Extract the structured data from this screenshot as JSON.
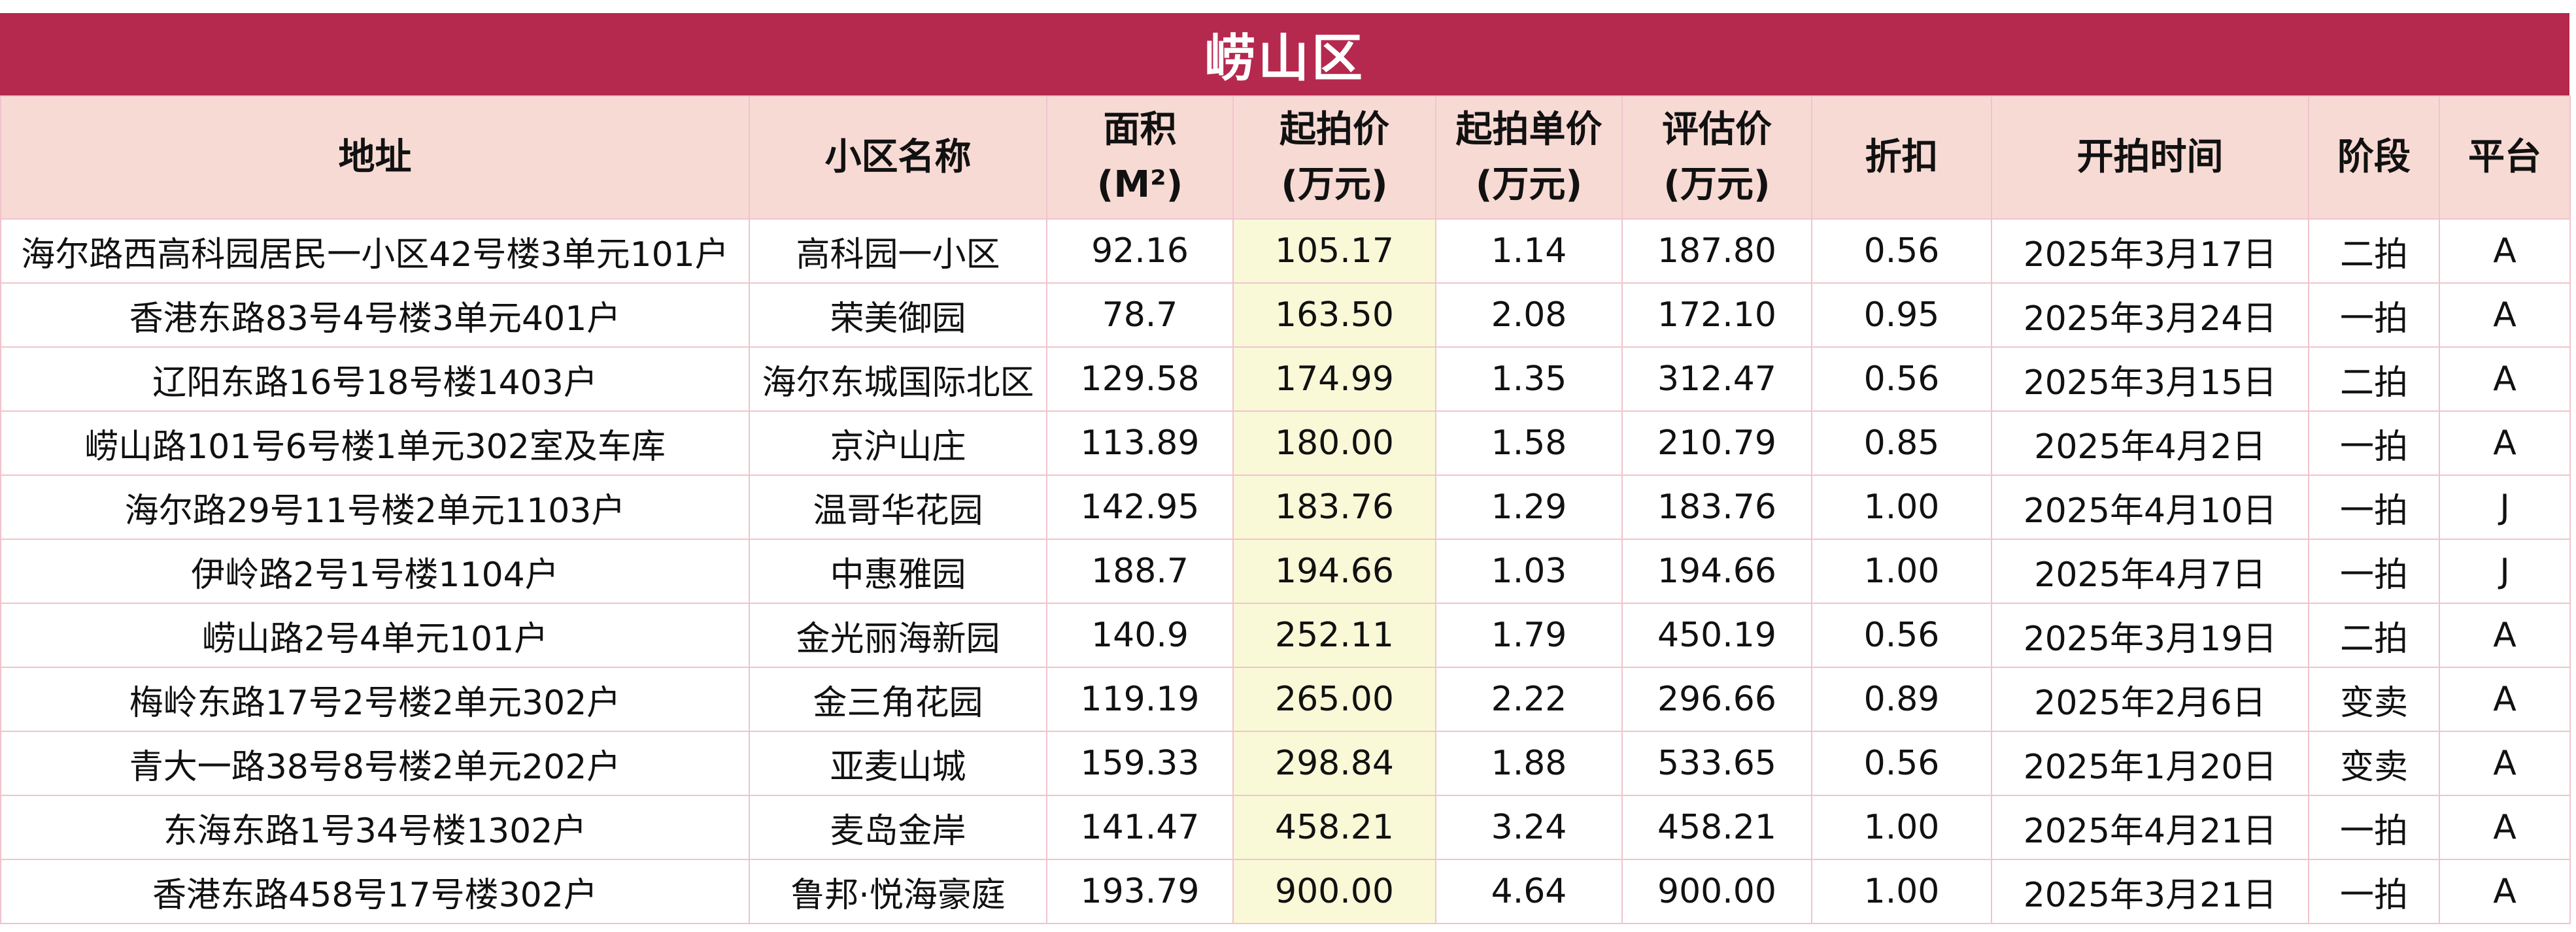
{
  "title": "崂山区",
  "headers": {
    "address": "地址",
    "community": "小区名称",
    "area_line1": "面积",
    "area_line2": "(M²)",
    "start_price_line1": "起拍价",
    "start_price_line2": "(万元)",
    "unit_price_line1": "起拍单价",
    "unit_price_line2": "(万元)",
    "appraisal_line1": "评估价",
    "appraisal_line2": "(万元)",
    "discount": "折扣",
    "start_time": "开拍时间",
    "stage": "阶段",
    "platform": "平台"
  },
  "rows": [
    {
      "address": "海尔路西高科园居民一小区42号楼3单元101户",
      "community": "高科园一小区",
      "area": "92.16",
      "start_price": "105.17",
      "unit_price": "1.14",
      "appraisal": "187.80",
      "discount": "0.56",
      "start_time": "2025年3月17日",
      "stage": "二拍",
      "platform": "A"
    },
    {
      "address": "香港东路83号4号楼3单元401户",
      "community": "荣美御园",
      "area": "78.7",
      "start_price": "163.50",
      "unit_price": "2.08",
      "appraisal": "172.10",
      "discount": "0.95",
      "start_time": "2025年3月24日",
      "stage": "一拍",
      "platform": "A"
    },
    {
      "address": "辽阳东路16号18号楼1403户",
      "community": "海尔东城国际北区",
      "area": "129.58",
      "start_price": "174.99",
      "unit_price": "1.35",
      "appraisal": "312.47",
      "discount": "0.56",
      "start_time": "2025年3月15日",
      "stage": "二拍",
      "platform": "A"
    },
    {
      "address": "崂山路101号6号楼1单元302室及车库",
      "community": "京沪山庄",
      "area": "113.89",
      "start_price": "180.00",
      "unit_price": "1.58",
      "appraisal": "210.79",
      "discount": "0.85",
      "start_time": "2025年4月2日",
      "stage": "一拍",
      "platform": "A"
    },
    {
      "address": "海尔路29号11号楼2单元1103户",
      "community": "温哥华花园",
      "area": "142.95",
      "start_price": "183.76",
      "unit_price": "1.29",
      "appraisal": "183.76",
      "discount": "1.00",
      "start_time": "2025年4月10日",
      "stage": "一拍",
      "platform": "J"
    },
    {
      "address": "伊岭路2号1号楼1104户",
      "community": "中惠雅园",
      "area": "188.7",
      "start_price": "194.66",
      "unit_price": "1.03",
      "appraisal": "194.66",
      "discount": "1.00",
      "start_time": "2025年4月7日",
      "stage": "一拍",
      "platform": "J"
    },
    {
      "address": "崂山路2号4单元101户",
      "community": "金光丽海新园",
      "area": "140.9",
      "start_price": "252.11",
      "unit_price": "1.79",
      "appraisal": "450.19",
      "discount": "0.56",
      "start_time": "2025年3月19日",
      "stage": "二拍",
      "platform": "A"
    },
    {
      "address": "梅岭东路17号2号楼2单元302户",
      "community": "金三角花园",
      "area": "119.19",
      "start_price": "265.00",
      "unit_price": "2.22",
      "appraisal": "296.66",
      "discount": "0.89",
      "start_time": "2025年2月6日",
      "stage": "变卖",
      "platform": "A"
    },
    {
      "address": "青大一路38号8号楼2单元202户",
      "community": "亚麦山城",
      "area": "159.33",
      "start_price": "298.84",
      "unit_price": "1.88",
      "appraisal": "533.65",
      "discount": "0.56",
      "start_time": "2025年1月20日",
      "stage": "变卖",
      "platform": "A"
    },
    {
      "address": "东海东路1号34号楼1302户",
      "community": "麦岛金岸",
      "area": "141.47",
      "start_price": "458.21",
      "unit_price": "3.24",
      "appraisal": "458.21",
      "discount": "1.00",
      "start_time": "2025年4月21日",
      "stage": "一拍",
      "platform": "A"
    },
    {
      "address": "香港东路458号17号楼302户",
      "community": "鲁邦·悦海豪庭",
      "area": "193.79",
      "start_price": "900.00",
      "unit_price": "4.64",
      "appraisal": "900.00",
      "discount": "1.00",
      "start_time": "2025年3月21日",
      "stage": "一拍",
      "platform": "A"
    }
  ]
}
